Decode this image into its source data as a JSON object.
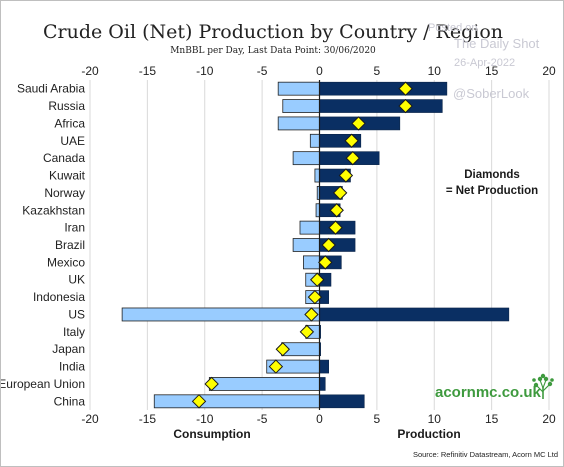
{
  "chart_data": {
    "type": "bar",
    "title": "Crude Oil (Net) Production by Country / Region",
    "subtitle": "MnBBL per Day, Last Data Point: 30/06/2020",
    "x_ticks": [
      -20,
      -15,
      -10,
      -5,
      0,
      5,
      10,
      15,
      20
    ],
    "xlim": [
      -20,
      20
    ],
    "xlabel_left": "Consumption",
    "xlabel_right": "Production",
    "categories": [
      "Saudi Arabia",
      "Russia",
      "Africa",
      "UAE",
      "Canada",
      "Kuwait",
      "Norway",
      "Kazakhstan",
      "Iran",
      "Brazil",
      "Mexico",
      "UK",
      "Indonesia",
      "US",
      "Italy",
      "Japan",
      "India",
      "European Union",
      "China"
    ],
    "series": [
      {
        "name": "Consumption",
        "color": "#99ccff",
        "values": [
          -3.6,
          -3.2,
          -3.6,
          -0.8,
          -2.3,
          -0.4,
          -0.2,
          -0.3,
          -1.7,
          -2.3,
          -1.4,
          -1.2,
          -1.2,
          -17.2,
          -1.2,
          -3.3,
          -4.6,
          -9.6,
          -14.4
        ]
      },
      {
        "name": "Production",
        "color": "#0a2f63",
        "values": [
          11.1,
          10.7,
          7.0,
          3.6,
          5.2,
          2.7,
          2.0,
          1.8,
          3.1,
          3.1,
          1.9,
          1.0,
          0.8,
          16.5,
          0.1,
          0.1,
          0.8,
          0.5,
          3.9
        ]
      },
      {
        "name": "Net Production",
        "marker": "diamond",
        "color": "#ffff00",
        "values": [
          7.5,
          7.5,
          3.4,
          2.8,
          2.9,
          2.3,
          1.8,
          1.5,
          1.4,
          0.8,
          0.5,
          -0.2,
          -0.4,
          -0.7,
          -1.1,
          -3.2,
          -3.8,
          -9.4,
          -10.5
        ]
      }
    ],
    "annotation": {
      "line1": "Diamonds",
      "line2": "= Net Production"
    },
    "grid": true,
    "legend": "none"
  },
  "watermark": {
    "posted_on": "Posted on",
    "site": "The Daily Shot",
    "date": "26-Apr-2022",
    "handle": "@SoberLook"
  },
  "branding": {
    "logo_text": "acornmc.co.uk",
    "tree_icon": "tree-icon"
  },
  "source": "Source: Refinitiv Datastream, Acorn MC Ltd",
  "colors": {
    "grid": "#d9d9d9",
    "consumption": "#99ccff",
    "production": "#0a2f63",
    "diamond": "#ffff00",
    "brand": "#3e9a3e"
  }
}
